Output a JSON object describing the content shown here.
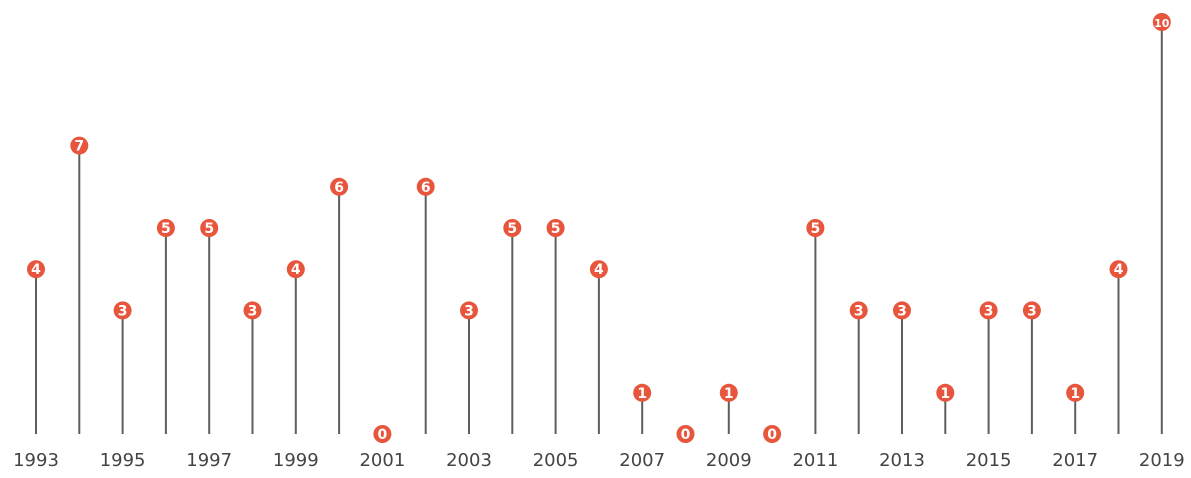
{
  "chart_data": {
    "type": "lollipop",
    "x": [
      1993,
      1994,
      1995,
      1996,
      1997,
      1998,
      1999,
      2000,
      2001,
      2002,
      2003,
      2004,
      2005,
      2006,
      2007,
      2008,
      2009,
      2010,
      2011,
      2012,
      2013,
      2014,
      2015,
      2016,
      2017,
      2018,
      2019
    ],
    "values": [
      4,
      7,
      3,
      5,
      5,
      3,
      4,
      6,
      0,
      6,
      3,
      5,
      5,
      4,
      1,
      0,
      1,
      0,
      5,
      3,
      3,
      1,
      3,
      3,
      1,
      4,
      10
    ],
    "x_tick_labels": [
      "1993",
      "1995",
      "1997",
      "1999",
      "2001",
      "2003",
      "2005",
      "2007",
      "2009",
      "2011",
      "2013",
      "2015",
      "2017",
      "2019"
    ],
    "title": "",
    "xlabel": "",
    "ylabel": "",
    "ylim": [
      0,
      10
    ],
    "grid": false,
    "legend": "none",
    "colors": {
      "marker": "#E8553D",
      "stem": "#5E5E5E",
      "marker_text": "#ffffff",
      "axis_text": "#444444"
    }
  }
}
